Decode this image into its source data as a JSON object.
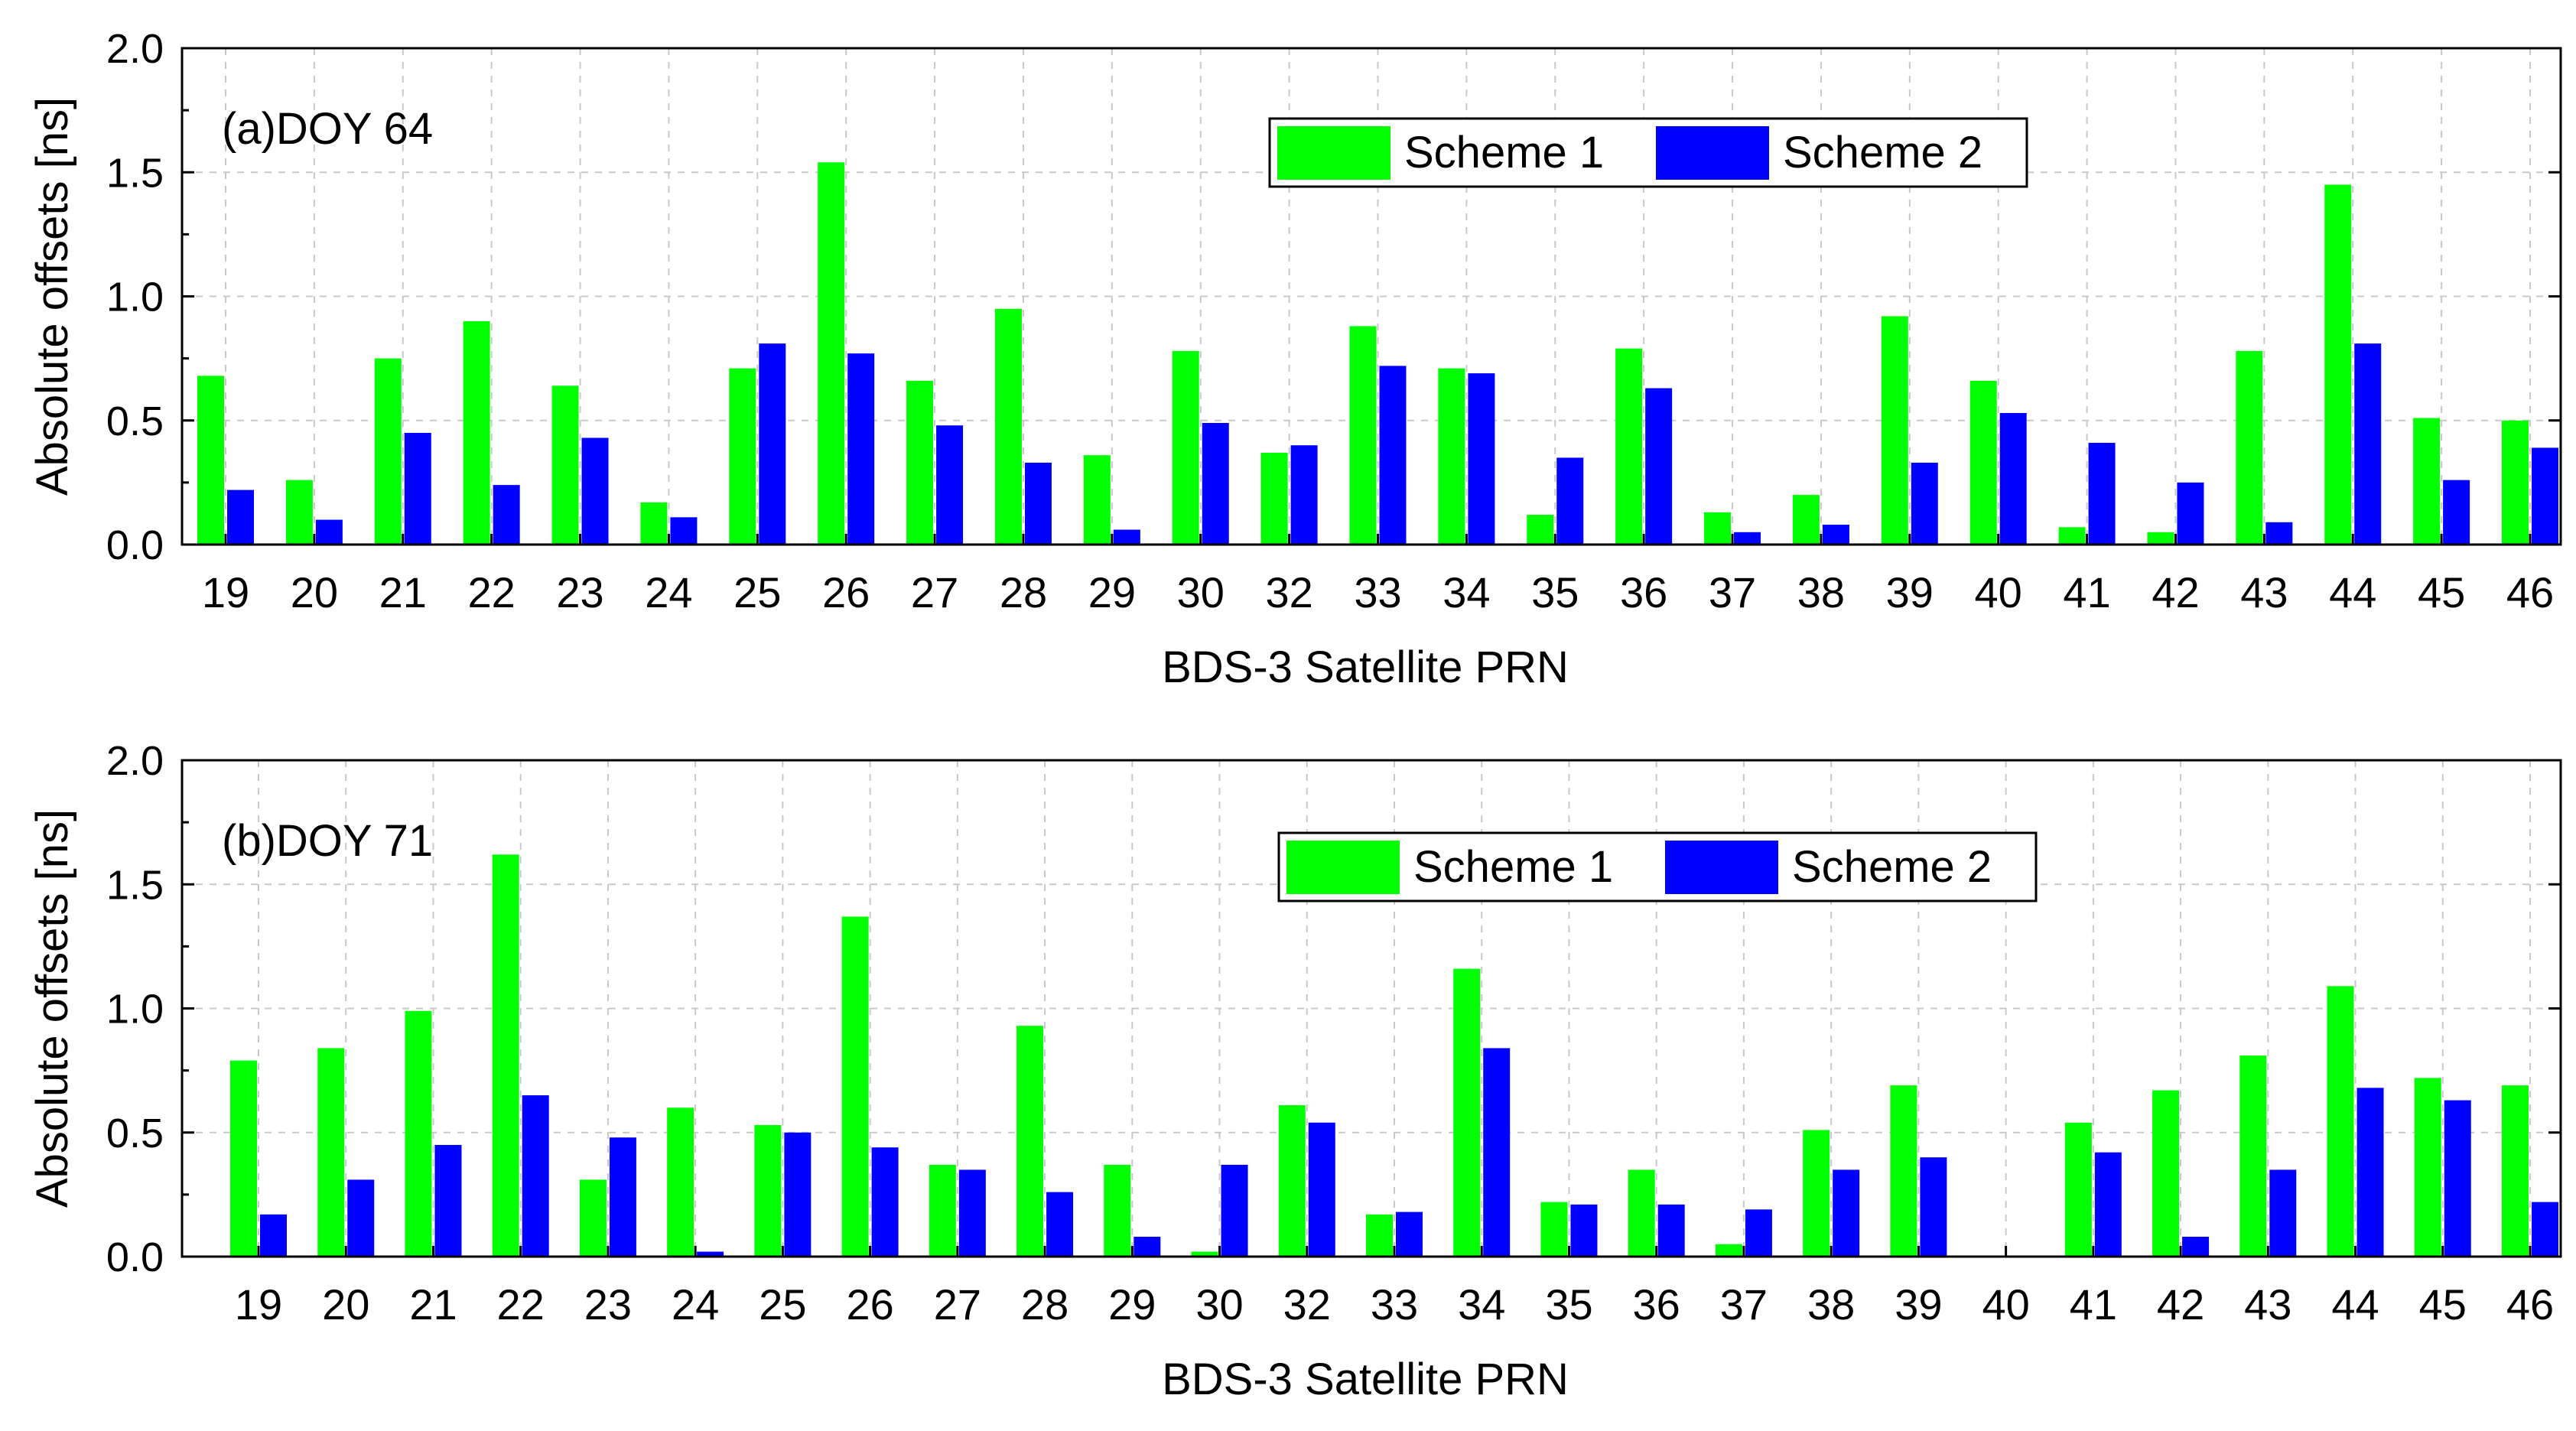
{
  "colors": {
    "scheme1": "#00ff00",
    "scheme2": "#0000ff",
    "axis": "#000000",
    "grid": "#c8c8c8"
  },
  "chart_data": [
    {
      "type": "bar",
      "panel_label": "(a)DOY 64",
      "xlabel": "BDS-3 Satellite PRN",
      "ylabel": "Absolute offsets [ns]",
      "ylim": [
        0,
        2.0
      ],
      "yticks": [
        "0.0",
        "0.5",
        "1.0",
        "1.5",
        "2.0"
      ],
      "grid": true,
      "legend_position": "top-center",
      "categories": [
        "19",
        "20",
        "21",
        "22",
        "23",
        "24",
        "25",
        "26",
        "27",
        "28",
        "29",
        "30",
        "32",
        "33",
        "34",
        "35",
        "36",
        "37",
        "38",
        "39",
        "40",
        "41",
        "42",
        "43",
        "44",
        "45",
        "46"
      ],
      "series": [
        {
          "name": "Scheme 1",
          "color": "#00ff00",
          "values": [
            0.68,
            0.26,
            0.75,
            0.9,
            0.64,
            0.17,
            0.71,
            1.54,
            0.66,
            0.95,
            0.36,
            0.78,
            0.37,
            0.88,
            0.71,
            0.12,
            0.79,
            0.13,
            0.2,
            0.92,
            0.66,
            0.07,
            0.05,
            0.78,
            1.45,
            0.51,
            0.5
          ]
        },
        {
          "name": "Scheme 2",
          "color": "#0000ff",
          "values": [
            0.22,
            0.1,
            0.45,
            0.24,
            0.43,
            0.11,
            0.81,
            0.77,
            0.48,
            0.33,
            0.06,
            0.49,
            0.4,
            0.72,
            0.69,
            0.35,
            0.63,
            0.05,
            0.08,
            0.33,
            0.53,
            0.41,
            0.25,
            0.09,
            0.81,
            0.26,
            0.39
          ]
        }
      ]
    },
    {
      "type": "bar",
      "panel_label": "(b)DOY 71",
      "xlabel": "BDS-3 Satellite PRN",
      "ylabel": "Absolute offsets [ns]",
      "ylim": [
        0,
        2.0
      ],
      "yticks": [
        "0.0",
        "0.5",
        "1.0",
        "1.5",
        "2.0"
      ],
      "grid": true,
      "legend_position": "top-center",
      "categories": [
        "19",
        "20",
        "21",
        "22",
        "23",
        "24",
        "25",
        "26",
        "27",
        "28",
        "29",
        "30",
        "32",
        "33",
        "34",
        "35",
        "36",
        "37",
        "38",
        "39",
        "40",
        "41",
        "42",
        "43",
        "44",
        "45",
        "46"
      ],
      "series": [
        {
          "name": "Scheme 1",
          "color": "#00ff00",
          "values": [
            0.79,
            0.84,
            0.99,
            1.62,
            0.31,
            0.6,
            0.53,
            1.37,
            0.37,
            0.93,
            0.37,
            0.02,
            0.61,
            0.17,
            1.16,
            0.22,
            0.35,
            0.05,
            0.51,
            0.69,
            0.0,
            0.54,
            0.67,
            0.81,
            1.09,
            0.72,
            0.69
          ]
        },
        {
          "name": "Scheme 2",
          "color": "#0000ff",
          "values": [
            0.17,
            0.31,
            0.45,
            0.65,
            0.48,
            0.02,
            0.5,
            0.44,
            0.35,
            0.26,
            0.08,
            0.37,
            0.54,
            0.18,
            0.84,
            0.21,
            0.21,
            0.19,
            0.35,
            0.4,
            0.0,
            0.42,
            0.08,
            0.35,
            0.68,
            0.63,
            0.22
          ]
        }
      ]
    }
  ]
}
